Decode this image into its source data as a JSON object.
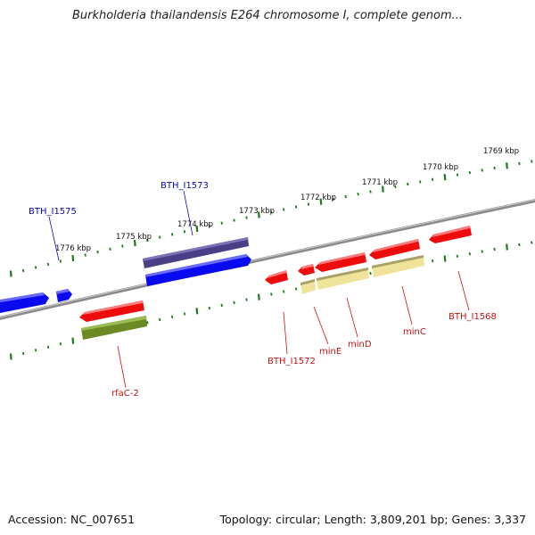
{
  "title": "Burkholderia thailandensis E264 chromosome I, complete genom...",
  "footer": {
    "accession": "Accession: NC_007651",
    "summary": "Topology: circular; Length: 3,809,201 bp; Genes: 3,337"
  },
  "colors": {
    "backbone": "#8a8a8a",
    "tick": "#1e7a1e",
    "gene_blue": "#0a0af0",
    "gene_red": "#ee0b0b",
    "gene_purple": "#4a3f86",
    "gene_olive": "#6b8a23",
    "gene_pale": "#efe39a",
    "label_blue": "#0a0aa8",
    "label_red": "#c81010"
  },
  "kbp_labels": [
    "1769 kbp",
    "1770 kbp",
    "1771 kbp",
    "1772 kbp",
    "1773 kbp",
    "1774 kbp",
    "1775 kbp",
    "1776 kbp"
  ],
  "gene_labels": {
    "bth_i1575": "BTH_I1575",
    "bth_i1573": "BTH_I1573",
    "rfac2": "rfaC-2",
    "bth_i1572": "BTH_I1572",
    "mine": "minE",
    "mind": "minD",
    "minc": "minC",
    "bth_i1568": "BTH_I1568"
  }
}
